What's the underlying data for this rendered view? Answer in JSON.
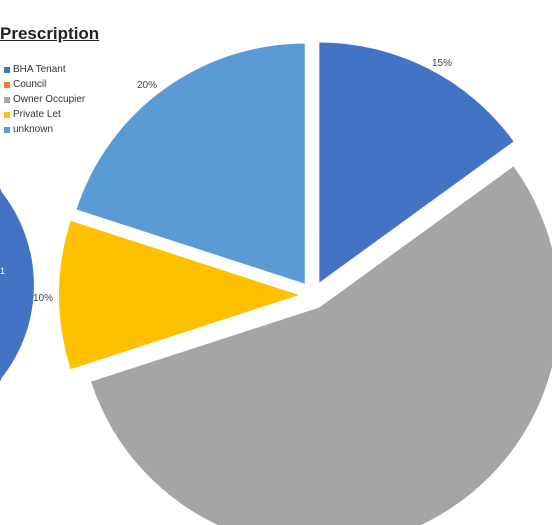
{
  "title": "Prescription",
  "left_chart_fragment_text": "1",
  "chart_data": {
    "type": "pie",
    "title": "Prescription",
    "categories": [
      "BHA Tenant",
      "Council",
      "Owner Occupier",
      "Private Let",
      "unknown"
    ],
    "values": [
      15,
      0,
      55,
      10,
      20
    ],
    "data_labels": [
      "15%",
      "",
      "",
      "10%",
      "20%"
    ],
    "colors": [
      "#4472C4",
      "#ED7D31",
      "#A5A5A5",
      "#FFC000",
      "#5B9BD5"
    ],
    "exploded": true,
    "legend_position": "left",
    "legend": [
      "BHA Tenant",
      "Council",
      "Owner Occupier",
      "Private Let",
      "unknown"
    ]
  }
}
